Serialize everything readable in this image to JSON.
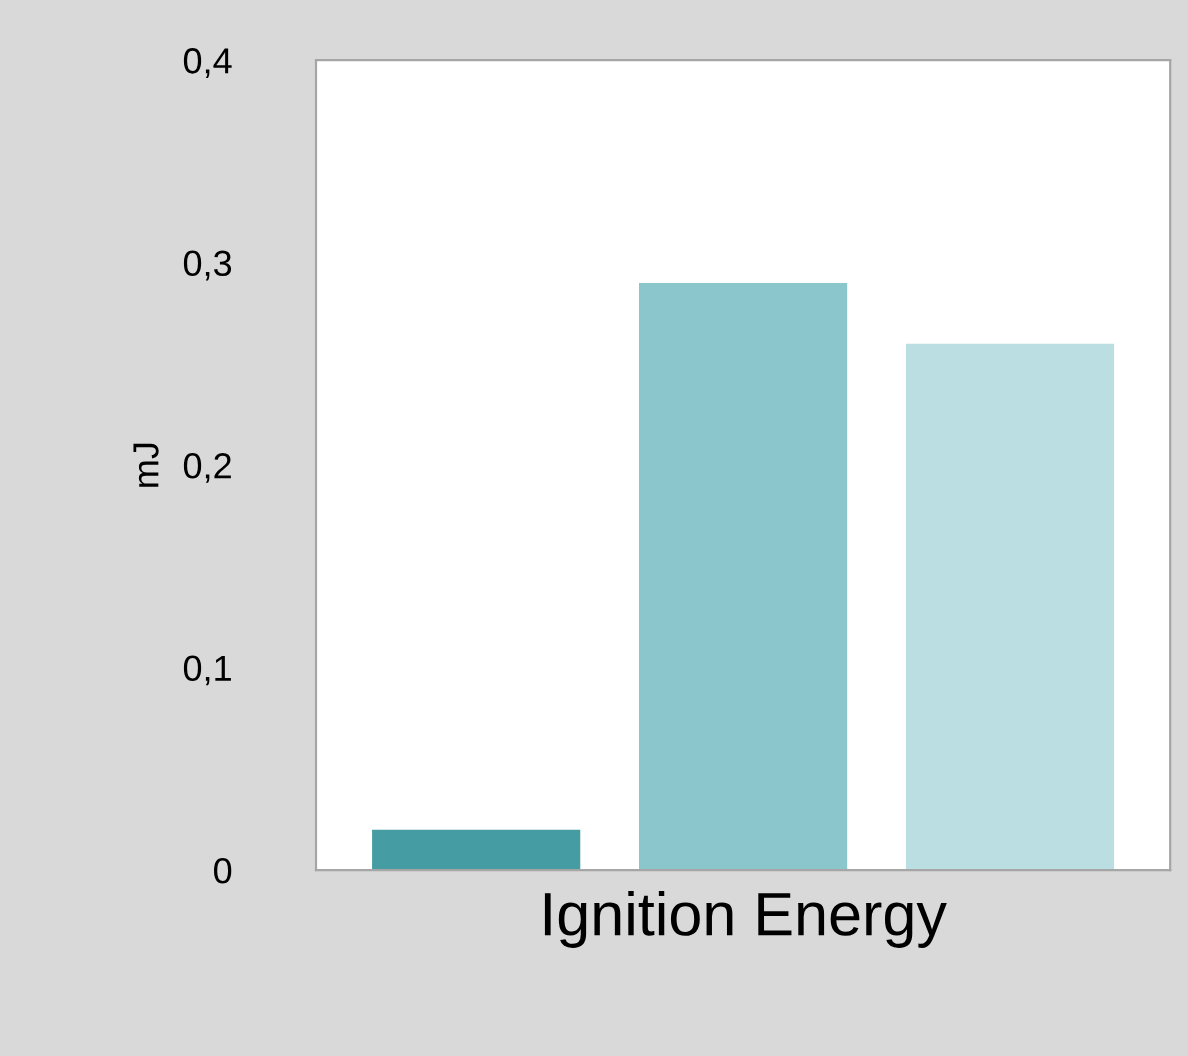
{
  "chart_data": {
    "type": "bar",
    "xlabel": "Ignition Energy",
    "ylabel": "mJ",
    "categories": [
      null,
      null,
      null
    ],
    "values": [
      0.02,
      0.29,
      0.26
    ],
    "colors": [
      "#459da3",
      "#8bc6cd",
      "#badee1"
    ],
    "ylim": [
      0,
      0.4
    ],
    "yticks": [
      0,
      {
        "value": 0.1,
        "label": "0,1"
      },
      {
        "value": 0.2,
        "label": "0,2"
      },
      {
        "value": 0.3,
        "label": "0,3"
      },
      {
        "value": 0.4,
        "label": "0,4"
      }
    ],
    "grid": false,
    "legend": false
  }
}
